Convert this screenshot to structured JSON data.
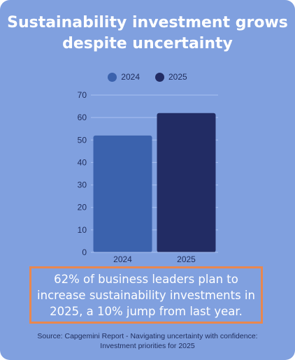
{
  "card": {
    "title_lines": [
      "Sustainability investment grows",
      "despite uncertainty"
    ],
    "callout_lines": [
      "62% of business leaders plan to",
      "increase sustainability investments in",
      "2025, a 10% jump from last year."
    ],
    "source_lines": [
      "Source: Capgemini Report - Navigating uncertainty with confidence:",
      "Investment priorities for 2025"
    ]
  },
  "colors": {
    "background": "#80a0df",
    "bar_2024": "#3b62ad",
    "bar_2025": "#222c64",
    "gridline": "#a8bff0",
    "callout_border": "#e9874e"
  },
  "chart_data": {
    "type": "bar",
    "categories": [
      "2024",
      "2025"
    ],
    "series": [
      {
        "name": "2024",
        "values": [
          52,
          null
        ],
        "color": "#3b62ad"
      },
      {
        "name": "2025",
        "values": [
          null,
          62
        ],
        "color": "#222c64"
      }
    ],
    "ylim": [
      0,
      70
    ],
    "yticks": [
      0,
      10,
      20,
      30,
      40,
      50,
      60,
      70
    ],
    "grid": true,
    "legend": "top-center"
  }
}
